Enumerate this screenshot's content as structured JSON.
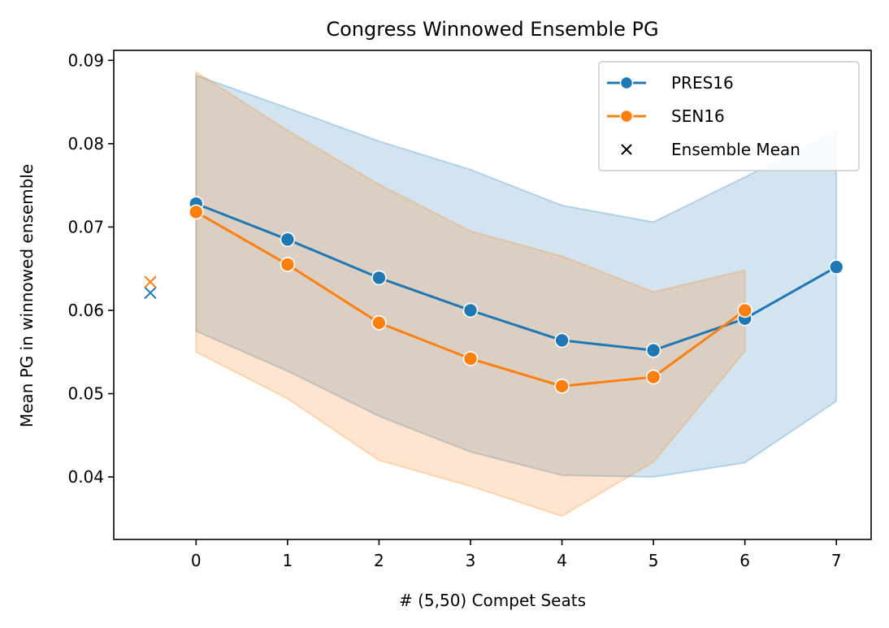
{
  "chart_data": {
    "type": "line",
    "title": "Congress Winnowed Ensemble PG",
    "xlabel": "# (5,50) Compet Seats",
    "ylabel": "Mean PG in winnowed ensemble",
    "xlim": [
      -0.9,
      7.38
    ],
    "ylim": [
      0.0325,
      0.0912
    ],
    "xticks": [
      0,
      1,
      2,
      3,
      4,
      5,
      6,
      7
    ],
    "yticks": [
      0.04,
      0.05,
      0.06,
      0.07,
      0.08,
      0.09
    ],
    "ytick_labels": [
      "0.04",
      "0.05",
      "0.06",
      "0.07",
      "0.08",
      "0.09"
    ],
    "legend_position": "top-right",
    "grid": false,
    "series": [
      {
        "name": "PRES16",
        "color": "#1f77b4",
        "x": [
          0,
          1,
          2,
          3,
          4,
          5,
          6,
          7
        ],
        "y": [
          0.0728,
          0.0685,
          0.0639,
          0.06,
          0.0564,
          0.0552,
          0.059,
          0.0652
        ],
        "band_lower": [
          0.0575,
          0.0527,
          0.0473,
          0.043,
          0.0402,
          0.04,
          0.0417,
          0.0491
        ],
        "band_upper": [
          0.0882,
          0.0843,
          0.0803,
          0.0769,
          0.0726,
          0.0706,
          0.076,
          0.0815
        ],
        "ensemble_mean": {
          "x": -0.5,
          "y": 0.0621
        }
      },
      {
        "name": "SEN16",
        "color": "#ff7f0e",
        "x": [
          0,
          1,
          2,
          3,
          4,
          5,
          6
        ],
        "y": [
          0.0718,
          0.0655,
          0.0585,
          0.0542,
          0.0509,
          0.052,
          0.06
        ],
        "band_lower": [
          0.055,
          0.0494,
          0.042,
          0.0389,
          0.0353,
          0.0418,
          0.0551
        ],
        "band_upper": [
          0.0886,
          0.0816,
          0.0751,
          0.0695,
          0.0665,
          0.0622,
          0.0648
        ],
        "ensemble_mean": {
          "x": -0.5,
          "y": 0.0634
        }
      }
    ],
    "legend": [
      {
        "label": "PRES16",
        "marker": "circle",
        "color": "#1f77b4"
      },
      {
        "label": "SEN16",
        "marker": "circle",
        "color": "#ff7f0e"
      },
      {
        "label": "Ensemble Mean",
        "marker": "x",
        "color": "#000000"
      }
    ]
  }
}
